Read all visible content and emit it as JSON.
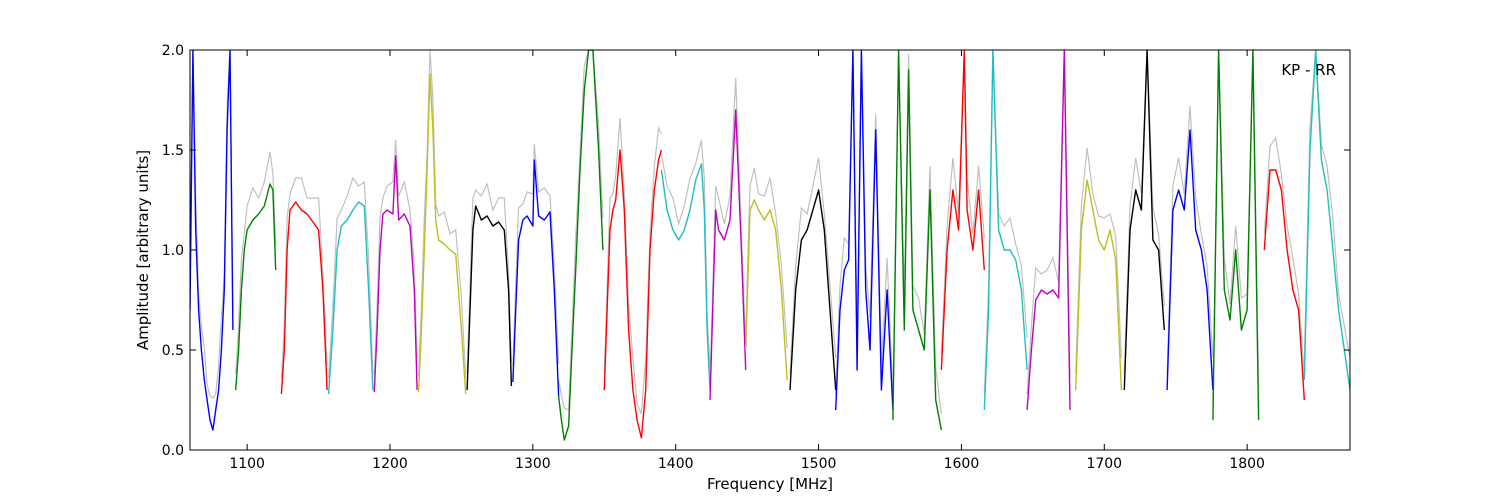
{
  "chart_data": {
    "type": "line",
    "title": "",
    "annotation": "KP - RR",
    "xlabel": "Frequency [MHz]",
    "ylabel": "Amplitude [arbitrary units]",
    "xlim": [
      1060,
      1872
    ],
    "ylim": [
      0.0,
      2.0
    ],
    "xticks": [
      1100,
      1200,
      1300,
      1400,
      1500,
      1600,
      1700,
      1800
    ],
    "yticks": [
      0.0,
      0.5,
      1.0,
      1.5,
      2.0
    ],
    "ytick_labels": [
      "0.0",
      "0.5",
      "1.0",
      "1.5",
      "2.0"
    ],
    "grid": false,
    "colors": {
      "background_trace": "#c0c0c0",
      "blue": "#0000ff",
      "green": "#008000",
      "red": "#ff0000",
      "cyan": "#1fbfbf",
      "magenta": "#bf00bf",
      "olive": "#bfbf1f",
      "black": "#000000"
    },
    "series": [
      {
        "color": "#0000ff",
        "x": [
          1060,
          1062,
          1064,
          1066,
          1068,
          1070,
          1072,
          1074,
          1076,
          1078,
          1080,
          1082,
          1084,
          1086,
          1088,
          1090
        ],
        "y": [
          0.7,
          2.0,
          1.1,
          0.7,
          0.5,
          0.35,
          0.25,
          0.15,
          0.1,
          0.2,
          0.3,
          0.5,
          0.8,
          1.6,
          2.0,
          0.6
        ]
      },
      {
        "color": "#008000",
        "x": [
          1092,
          1094,
          1096,
          1098,
          1100,
          1104,
          1108,
          1112,
          1116,
          1118,
          1120
        ],
        "y": [
          0.3,
          0.5,
          0.8,
          1.0,
          1.1,
          1.15,
          1.18,
          1.22,
          1.33,
          1.3,
          0.9
        ]
      },
      {
        "color": "#ff0000",
        "x": [
          1124,
          1126,
          1128,
          1130,
          1134,
          1138,
          1142,
          1146,
          1150,
          1153,
          1156
        ],
        "y": [
          0.28,
          0.5,
          1.0,
          1.2,
          1.24,
          1.2,
          1.18,
          1.14,
          1.1,
          0.8,
          0.3
        ]
      },
      {
        "color": "#1fbfbf",
        "x": [
          1157,
          1160,
          1163,
          1166,
          1170,
          1174,
          1178,
          1182,
          1185,
          1188
        ],
        "y": [
          0.28,
          0.6,
          1.0,
          1.12,
          1.15,
          1.2,
          1.24,
          1.22,
          0.8,
          0.3
        ]
      },
      {
        "color": "#bf00bf",
        "x": [
          1189,
          1191,
          1193,
          1195,
          1198,
          1202,
          1204,
          1206,
          1210,
          1214,
          1217,
          1219
        ],
        "y": [
          0.29,
          0.6,
          1.0,
          1.18,
          1.2,
          1.18,
          1.47,
          1.15,
          1.18,
          1.12,
          0.8,
          0.3
        ]
      },
      {
        "color": "#bfbf1f",
        "x": [
          1220,
          1222,
          1224,
          1226,
          1228,
          1230,
          1232,
          1234,
          1238,
          1242,
          1246,
          1250,
          1253
        ],
        "y": [
          0.29,
          0.6,
          1.0,
          1.4,
          1.88,
          1.6,
          1.15,
          1.05,
          1.03,
          1.0,
          0.98,
          0.6,
          0.28
        ]
      },
      {
        "color": "#000000",
        "x": [
          1254,
          1256,
          1258,
          1260,
          1264,
          1268,
          1272,
          1276,
          1280,
          1283,
          1285
        ],
        "y": [
          0.3,
          0.7,
          1.1,
          1.22,
          1.15,
          1.17,
          1.12,
          1.14,
          1.1,
          0.8,
          0.32
        ]
      },
      {
        "color": "#0000ff",
        "x": [
          1286,
          1288,
          1290,
          1293,
          1296,
          1300,
          1301,
          1304,
          1308,
          1312,
          1315,
          1318
        ],
        "y": [
          0.34,
          0.7,
          1.05,
          1.15,
          1.17,
          1.12,
          1.45,
          1.17,
          1.15,
          1.19,
          0.8,
          0.27
        ]
      },
      {
        "color": "#008000",
        "x": [
          1318,
          1320,
          1322,
          1325,
          1328,
          1330,
          1333,
          1336,
          1339,
          1342,
          1346,
          1349
        ],
        "y": [
          0.27,
          0.15,
          0.05,
          0.12,
          0.6,
          0.9,
          1.4,
          1.8,
          2.0,
          2.0,
          1.5,
          1.0
        ]
      },
      {
        "color": "#ff0000",
        "x": [
          1350,
          1352,
          1354,
          1356,
          1358,
          1361,
          1364,
          1367,
          1370,
          1373,
          1376,
          1379,
          1382,
          1385,
          1388,
          1390
        ],
        "y": [
          0.3,
          0.7,
          1.1,
          1.2,
          1.25,
          1.5,
          1.2,
          0.6,
          0.3,
          0.15,
          0.06,
          0.3,
          1.0,
          1.3,
          1.45,
          1.5
        ]
      },
      {
        "color": "#1fbfbf",
        "x": [
          1390,
          1394,
          1398,
          1402,
          1406,
          1410,
          1414,
          1418,
          1420,
          1422,
          1424
        ],
        "y": [
          1.4,
          1.2,
          1.1,
          1.05,
          1.1,
          1.2,
          1.35,
          1.43,
          1.2,
          0.6,
          0.3
        ]
      },
      {
        "color": "#bf00bf",
        "x": [
          1424,
          1428,
          1430,
          1434,
          1438,
          1442,
          1446,
          1449
        ],
        "y": [
          0.25,
          1.2,
          1.1,
          1.05,
          1.15,
          1.7,
          1.0,
          0.4
        ]
      },
      {
        "color": "#bfbf1f",
        "x": [
          1449,
          1452,
          1455,
          1458,
          1462,
          1466,
          1470,
          1474,
          1478
        ],
        "y": [
          0.5,
          1.2,
          1.25,
          1.2,
          1.15,
          1.2,
          1.1,
          0.8,
          0.35
        ]
      },
      {
        "color": "#000000",
        "x": [
          1480,
          1484,
          1488,
          1492,
          1496,
          1500,
          1504,
          1508,
          1512
        ],
        "y": [
          0.3,
          0.8,
          1.05,
          1.1,
          1.2,
          1.3,
          1.1,
          0.7,
          0.3
        ]
      },
      {
        "color": "#0000ff",
        "x": [
          1512,
          1515,
          1518,
          1521,
          1524,
          1527,
          1530,
          1533,
          1536,
          1540,
          1544,
          1548,
          1552
        ],
        "y": [
          0.2,
          0.7,
          0.9,
          0.95,
          2.0,
          0.4,
          2.0,
          0.8,
          0.5,
          1.6,
          0.3,
          0.8,
          0.2
        ]
      },
      {
        "color": "#008000",
        "x": [
          1552,
          1556,
          1560,
          1563,
          1566,
          1570,
          1574,
          1578,
          1582,
          1586
        ],
        "y": [
          0.15,
          2.0,
          0.6,
          1.9,
          0.7,
          0.6,
          0.5,
          1.3,
          0.25,
          0.1
        ]
      },
      {
        "color": "#ff0000",
        "x": [
          1586,
          1590,
          1594,
          1598,
          1602,
          1604,
          1608,
          1612,
          1616
        ],
        "y": [
          0.4,
          1.0,
          1.3,
          1.1,
          2.0,
          1.2,
          1.0,
          1.3,
          0.9
        ]
      },
      {
        "color": "#1fbfbf",
        "x": [
          1616,
          1619,
          1622,
          1626,
          1630,
          1634,
          1638,
          1642,
          1646
        ],
        "y": [
          0.2,
          0.7,
          2.0,
          1.1,
          1.0,
          1.0,
          0.95,
          0.8,
          0.4
        ]
      },
      {
        "color": "#bf00bf",
        "x": [
          1646,
          1649,
          1652,
          1656,
          1660,
          1664,
          1668,
          1672,
          1676
        ],
        "y": [
          0.2,
          0.5,
          0.75,
          0.8,
          0.78,
          0.8,
          0.76,
          2.0,
          0.2
        ]
      },
      {
        "color": "#bfbf1f",
        "x": [
          1680,
          1684,
          1688,
          1692,
          1696,
          1700,
          1704,
          1708,
          1712
        ],
        "y": [
          0.3,
          1.1,
          1.35,
          1.2,
          1.05,
          1.0,
          1.1,
          0.95,
          0.3
        ]
      },
      {
        "color": "#000000",
        "x": [
          1714,
          1718,
          1722,
          1726,
          1730,
          1734,
          1738,
          1742
        ],
        "y": [
          0.3,
          1.1,
          1.3,
          1.2,
          2.0,
          1.05,
          1.0,
          0.6
        ]
      },
      {
        "color": "#0000ff",
        "x": [
          1744,
          1748,
          1752,
          1756,
          1760,
          1764,
          1768,
          1772,
          1776
        ],
        "y": [
          0.3,
          1.2,
          1.3,
          1.2,
          1.6,
          1.1,
          1.0,
          0.8,
          0.3
        ]
      },
      {
        "color": "#008000",
        "x": [
          1776,
          1780,
          1784,
          1788,
          1792,
          1796,
          1800,
          1804,
          1808
        ],
        "y": [
          0.15,
          2.0,
          0.8,
          0.65,
          1.0,
          0.6,
          0.7,
          2.0,
          0.15
        ]
      },
      {
        "color": "#ff0000",
        "x": [
          1812,
          1816,
          1820,
          1824,
          1828,
          1832,
          1836,
          1840
        ],
        "y": [
          1.0,
          1.4,
          1.4,
          1.3,
          1.0,
          0.8,
          0.7,
          0.25
        ]
      },
      {
        "color": "#1fbfbf",
        "x": [
          1840,
          1844,
          1848,
          1852,
          1856,
          1860,
          1864,
          1868,
          1872
        ],
        "y": [
          0.35,
          1.5,
          2.0,
          1.45,
          1.3,
          1.0,
          0.7,
          0.5,
          0.3
        ]
      }
    ]
  }
}
